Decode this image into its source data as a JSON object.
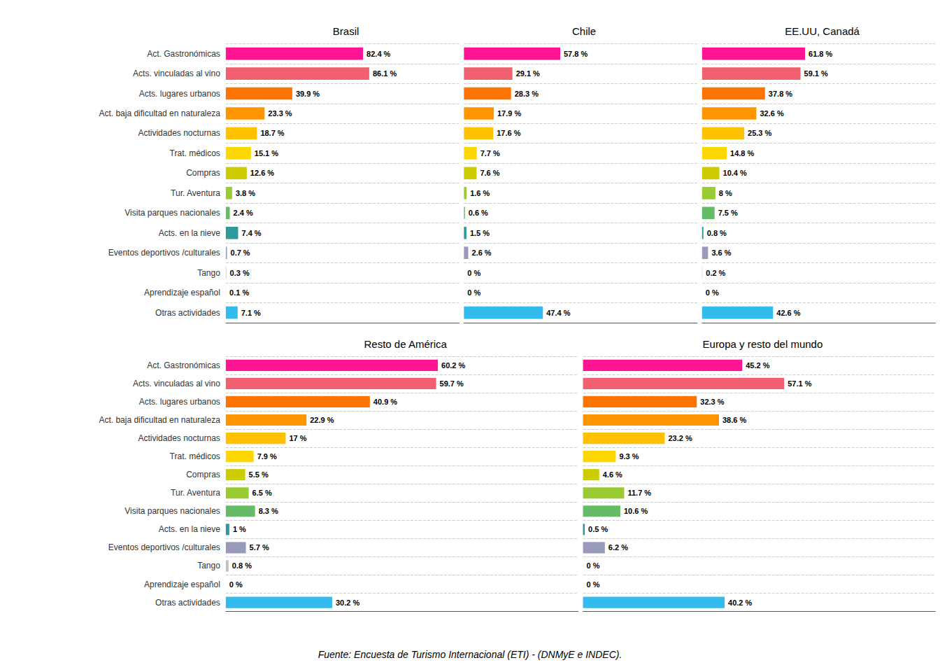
{
  "chart_data": [
    {
      "type": "bar",
      "orientation": "horizontal",
      "title": "Brasil",
      "categories": [
        "Act. Gastronómicas",
        "Acts. vinculadas al vino",
        "Acts. lugares urbanos",
        "Act. baja dificultad en naturaleza",
        "Actividades nocturnas",
        "Trat. médicos",
        "Compras",
        "Tur. Aventura",
        "Visita parques nacionales",
        "Acts. en la nieve",
        "Eventos deportivos /culturales",
        "Tango",
        "Aprendizaje español",
        "Otras actividades"
      ],
      "values": [
        82.4,
        86.1,
        39.9,
        23.3,
        18.7,
        15.1,
        12.6,
        3.8,
        2.4,
        7.4,
        0.7,
        0.3,
        0.1,
        7.1
      ],
      "value_labels": [
        "82.4 %",
        "86.1 %",
        "39.9 %",
        "23.3 %",
        "18.7 %",
        "15.1 %",
        "12.6 %",
        "3.8 %",
        "2.4 %",
        "7.4 %",
        "0.7 %",
        "0.3 %",
        "0.1 %",
        "7.1 %"
      ],
      "colors": [
        "#FF1493",
        "#F06070",
        "#FF7300",
        "#FF9500",
        "#FFC000",
        "#FFD700",
        "#CCCC00",
        "#99CC33",
        "#66BB66",
        "#2E9999",
        "#9999BB",
        "#C0C0C0",
        "#D8D8D8",
        "#33BBEE"
      ],
      "xlim": [
        0,
        140
      ],
      "xticks": [],
      "grid": true,
      "data_labels": true,
      "tick_labels": "y"
    },
    {
      "type": "bar",
      "orientation": "horizontal",
      "title": "Chile",
      "categories": [
        "Act. Gastronómicas",
        "Acts. vinculadas al vino",
        "Acts. lugares urbanos",
        "Act. baja dificultad en naturaleza",
        "Actividades nocturnas",
        "Trat. médicos",
        "Compras",
        "Tur. Aventura",
        "Visita parques nacionales",
        "Acts. en la nieve",
        "Eventos deportivos /culturales",
        "Tango",
        "Aprendizaje español",
        "Otras actividades"
      ],
      "values": [
        57.8,
        29.1,
        28.3,
        17.9,
        17.6,
        7.7,
        7.6,
        1.6,
        0.6,
        1.5,
        2.6,
        0.0,
        0.0,
        47.4
      ],
      "value_labels": [
        "57.8 %",
        "29.1 %",
        "28.3 %",
        "17.9 %",
        "17.6 %",
        "7.7 %",
        "7.6 %",
        "1.6 %",
        "0.6 %",
        "1.5 %",
        "2.6 %",
        "0 %",
        "0 %",
        "47.4 %"
      ],
      "colors": [
        "#FF1493",
        "#F06070",
        "#FF7300",
        "#FF9500",
        "#FFC000",
        "#FFD700",
        "#CCCC00",
        "#99CC33",
        "#66BB66",
        "#2E9999",
        "#9999BB",
        "#C0C0C0",
        "#D8D8D8",
        "#33BBEE"
      ],
      "xlim": [
        0,
        140
      ],
      "xticks": [],
      "grid": true,
      "data_labels": true,
      "tick_labels": false
    },
    {
      "type": "bar",
      "orientation": "horizontal",
      "title": "EE.UU, Canadá",
      "categories": [
        "Act. Gastronómicas",
        "Acts. vinculadas al vino",
        "Acts. lugares urbanos",
        "Act. baja dificultad en naturaleza",
        "Actividades nocturnas",
        "Trat. médicos",
        "Compras",
        "Tur. Aventura",
        "Visita parques nacionales",
        "Acts. en la nieve",
        "Eventos deportivos /culturales",
        "Tango",
        "Aprendizaje español",
        "Otras actividades"
      ],
      "values": [
        61.8,
        59.1,
        37.8,
        32.6,
        25.3,
        14.8,
        10.4,
        8.0,
        7.5,
        0.8,
        3.6,
        0.2,
        0.0,
        42.6
      ],
      "value_labels": [
        "61.8 %",
        "59.1 %",
        "37.8 %",
        "32.6 %",
        "25.3 %",
        "14.8 %",
        "10.4 %",
        "8 %",
        "7.5 %",
        "0.8 %",
        "3.6 %",
        "0.2 %",
        "0 %",
        "42.6 %"
      ],
      "colors": [
        "#FF1493",
        "#F06070",
        "#FF7300",
        "#FF9500",
        "#FFC000",
        "#FFD700",
        "#CCCC00",
        "#99CC33",
        "#66BB66",
        "#2E9999",
        "#9999BB",
        "#C0C0C0",
        "#D8D8D8",
        "#33BBEE"
      ],
      "xlim": [
        0,
        140
      ],
      "xticks": [],
      "grid": true,
      "data_labels": true,
      "tick_labels": false
    },
    {
      "type": "bar",
      "orientation": "horizontal",
      "title": "Resto de América",
      "categories": [
        "Act. Gastronómicas",
        "Acts. vinculadas al vino",
        "Acts. lugares urbanos",
        "Act. baja dificultad en naturaleza",
        "Actividades nocturnas",
        "Trat. médicos",
        "Compras",
        "Tur. Aventura",
        "Visita parques nacionales",
        "Acts. en la nieve",
        "Eventos deportivos /culturales",
        "Tango",
        "Aprendizaje español",
        "Otras actividades"
      ],
      "values": [
        60.2,
        59.7,
        40.9,
        22.9,
        17.0,
        7.9,
        5.5,
        6.5,
        8.3,
        1.0,
        5.7,
        0.8,
        0.0,
        30.2
      ],
      "value_labels": [
        "60.2 %",
        "59.7 %",
        "40.9 %",
        "22.9 %",
        "17 %",
        "7.9 %",
        "5.5 %",
        "6.5 %",
        "8.3 %",
        "1 %",
        "5.7 %",
        "0.8 %",
        "0 %",
        "30.2 %"
      ],
      "colors": [
        "#FF1493",
        "#F06070",
        "#FF7300",
        "#FF9500",
        "#FFC000",
        "#FFD700",
        "#CCCC00",
        "#99CC33",
        "#66BB66",
        "#2E9999",
        "#9999BB",
        "#C0C0C0",
        "#D8D8D8",
        "#33BBEE"
      ],
      "xlim": [
        0,
        100
      ],
      "xticks": [],
      "grid": true,
      "data_labels": true,
      "tick_labels": "y"
    },
    {
      "type": "bar",
      "orientation": "horizontal",
      "title": "Europa y resto del mundo",
      "categories": [
        "Act. Gastronómicas",
        "Acts. vinculadas al vino",
        "Acts. lugares urbanos",
        "Act. baja dificultad en naturaleza",
        "Actividades nocturnas",
        "Trat. médicos",
        "Compras",
        "Tur. Aventura",
        "Visita parques nacionales",
        "Acts. en la nieve",
        "Eventos deportivos /culturales",
        "Tango",
        "Aprendizaje español",
        "Otras actividades"
      ],
      "values": [
        45.2,
        57.1,
        32.3,
        38.6,
        23.2,
        9.3,
        4.6,
        11.7,
        10.6,
        0.5,
        6.2,
        0.0,
        0.0,
        40.2
      ],
      "value_labels": [
        "45.2 %",
        "57.1 %",
        "32.3 %",
        "38.6 %",
        "23.2 %",
        "9.3 %",
        "4.6 %",
        "11.7 %",
        "10.6 %",
        "0.5 %",
        "6.2 %",
        "0 %",
        "0 %",
        "40.2 %"
      ],
      "colors": [
        "#FF1493",
        "#F06070",
        "#FF7300",
        "#FF9500",
        "#FFC000",
        "#FFD700",
        "#CCCC00",
        "#99CC33",
        "#66BB66",
        "#2E9999",
        "#9999BB",
        "#C0C0C0",
        "#D8D8D8",
        "#33BBEE"
      ],
      "xlim": [
        0,
        100
      ],
      "xticks": [],
      "grid": true,
      "data_labels": true,
      "tick_labels": false,
      "annotations": [
        "Fuente: Encuesta de Turismo Internacional (ETI) - (DNMyE e INDEC)."
      ]
    }
  ]
}
